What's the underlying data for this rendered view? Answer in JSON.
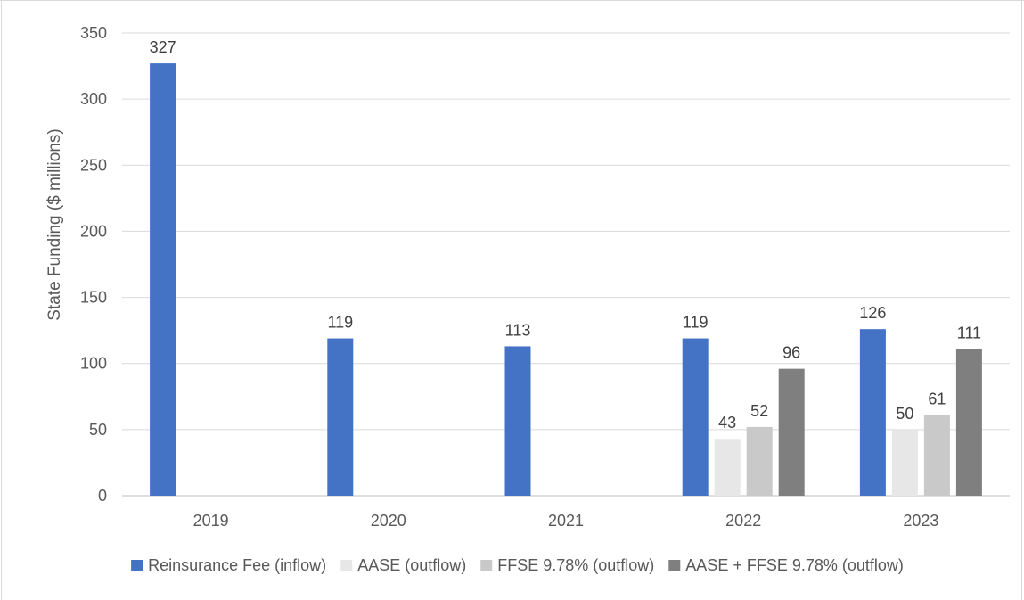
{
  "chart_data": {
    "type": "bar",
    "title": "",
    "xlabel": "",
    "ylabel": "State Funding ($ millions)",
    "ylim": [
      0,
      350
    ],
    "yticks": [
      0,
      50,
      100,
      150,
      200,
      250,
      300,
      350
    ],
    "categories": [
      "2019",
      "2020",
      "2021",
      "2022",
      "2023"
    ],
    "grid": true,
    "legend_position": "bottom",
    "series": [
      {
        "name": "Reinsurance Fee (inflow)",
        "color": "#4472C4",
        "values": [
          327,
          119,
          113,
          119,
          126
        ]
      },
      {
        "name": "AASE (outflow)",
        "color": "#E7E7E7",
        "values": [
          null,
          null,
          null,
          43,
          50
        ]
      },
      {
        "name": "FFSE 9.78% (outflow)",
        "color": "#C9C9C9",
        "values": [
          null,
          null,
          null,
          52,
          61
        ]
      },
      {
        "name": "AASE + FFSE 9.78% (outflow)",
        "color": "#7F7F7F",
        "values": [
          null,
          null,
          null,
          96,
          111
        ]
      }
    ]
  }
}
